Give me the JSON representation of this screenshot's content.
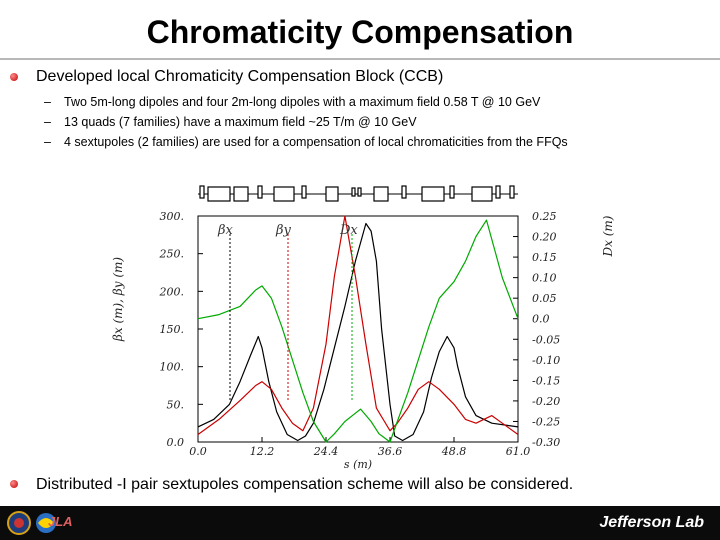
{
  "slide": {
    "title": "Chromaticity Compensation",
    "bullet1": "Developed local Chromaticity Compensation Block (CCB)",
    "sub_items": [
      "Two 5m-long dipoles and four 2m-long dipoles with a maximum field 0.58 T @ 10 GeV",
      "13 quads (7 families) have a maximum field ~25 T/m @ 10 GeV",
      "4 sextupoles (2 families) are used for a compensation of local chromaticities from the FFQs"
    ],
    "bullet2": "Distributed -I pair sextupoles compensation scheme will also be considered."
  },
  "footer": {
    "brand": "Jefferson Lab",
    "logo_text": "JLA"
  },
  "chart_data": {
    "type": "line",
    "xlabel": "s (m)",
    "ylabel_left": "βx (m), βy (m)",
    "ylabel_right": "Dx (m)",
    "x_ticks": [
      "0.0",
      "12.2",
      "24.4",
      "36.6",
      "48.8",
      "61.0"
    ],
    "y_left_ticks": [
      "300.",
      "250.",
      "200.",
      "150.",
      "100.",
      "50.",
      "0.0"
    ],
    "y_right_ticks": [
      "0.25",
      "0.20",
      "0.15",
      "0.10",
      "0.05",
      "0.0",
      "-0.05",
      "-0.10",
      "-0.15",
      "-0.20",
      "-0.25",
      "-0.30"
    ],
    "xlim": [
      0,
      61
    ],
    "ylim_left": [
      0,
      300
    ],
    "ylim_right": [
      -0.3,
      0.25
    ],
    "legend": [
      "βx",
      "βy",
      "Dx"
    ],
    "colors": {
      "betax": "#000000",
      "betay": "#cc0000",
      "dx": "#00aa00"
    },
    "series": [
      {
        "name": "βx",
        "axis": "left",
        "color": "#000000",
        "x": [
          0,
          3,
          6,
          8,
          10,
          11.5,
          12.2,
          13.5,
          15,
          17,
          19,
          20.5,
          22,
          24,
          26,
          28,
          30,
          32,
          33,
          34,
          35,
          36.6,
          37.5,
          39,
          41,
          43,
          44.5,
          46,
          47.5,
          48.8,
          49.5,
          51,
          53,
          56,
          59,
          61
        ],
        "y": [
          20,
          30,
          50,
          80,
          115,
          140,
          125,
          80,
          40,
          10,
          2,
          8,
          25,
          70,
          125,
          180,
          240,
          290,
          280,
          240,
          150,
          50,
          8,
          2,
          10,
          40,
          85,
          120,
          140,
          125,
          100,
          60,
          35,
          25,
          22,
          20
        ]
      },
      {
        "name": "βy",
        "axis": "left",
        "color": "#cc0000",
        "x": [
          0,
          4,
          8,
          11,
          12.2,
          14,
          16,
          18,
          20,
          22,
          24.4,
          26,
          28,
          30,
          32,
          34,
          36.6,
          38,
          40,
          42,
          44,
          46,
          48.8,
          51,
          53,
          56,
          58,
          61
        ],
        "y": [
          10,
          30,
          55,
          75,
          80,
          70,
          45,
          25,
          15,
          45,
          130,
          220,
          300,
          220,
          130,
          45,
          15,
          25,
          45,
          70,
          80,
          70,
          50,
          30,
          25,
          35,
          25,
          10
        ]
      },
      {
        "name": "Dx",
        "axis": "right",
        "color": "#00aa00",
        "x": [
          0,
          4,
          8,
          11,
          12.2,
          14,
          16,
          18,
          20,
          22,
          24.4,
          26,
          28,
          30,
          31,
          33,
          34.5,
          36.6,
          38,
          40,
          42,
          44,
          46,
          48.8,
          51,
          53,
          55,
          58,
          61
        ],
        "y": [
          0.0,
          0.01,
          0.03,
          0.07,
          0.08,
          0.05,
          -0.02,
          -0.1,
          -0.18,
          -0.25,
          -0.3,
          -0.28,
          -0.25,
          -0.23,
          -0.22,
          -0.25,
          -0.28,
          -0.3,
          -0.25,
          -0.18,
          -0.1,
          -0.02,
          0.05,
          0.09,
          0.14,
          0.2,
          0.24,
          0.1,
          0.0
        ]
      }
    ]
  }
}
